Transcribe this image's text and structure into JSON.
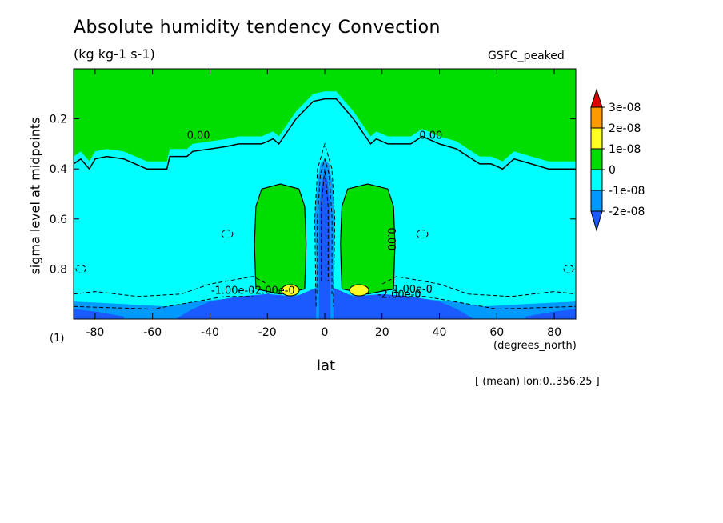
{
  "chart_data": {
    "type": "heatmap",
    "title": "Absolute humidity tendency Convection",
    "units": "(kg kg-1 s-1)",
    "source": "GSFC_peaked",
    "xlabel": "lat",
    "x_units": "(degrees_north)",
    "ylabel": "sigma level at midpoints",
    "y_units": "(1)",
    "note": "[ (mean) lon:0..356.25 ]",
    "xlim": [
      -87.5,
      87.5
    ],
    "ylim": [
      1.0,
      0.0
    ],
    "x_ticks": [
      "-80",
      "-60",
      "-40",
      "-20",
      "0",
      "20",
      "40",
      "60",
      "80"
    ],
    "y_ticks": [
      "0.2",
      "0.4",
      "0.6",
      "0.8"
    ],
    "x_tick_values": [
      -80,
      -60,
      -40,
      -20,
      0,
      20,
      40,
      60,
      80
    ],
    "y_tick_values": [
      0.2,
      0.4,
      0.6,
      0.8
    ],
    "colorbar": {
      "levels": [
        "3e-08",
        "2e-08",
        "1e-08",
        "0",
        "-1e-08",
        "-2e-08"
      ],
      "colors": [
        "#e00000",
        "#ff9900",
        "#ffff22",
        "#00dd00",
        "#00ffff",
        "#0099ff",
        "#1a5aff"
      ]
    },
    "contour_labels": [
      "0.00",
      "0.00",
      "0.00",
      "-1.00e-0",
      "-2.00e-0",
      "-2.00e-0",
      "-1.00e-0"
    ],
    "zero_line_north": [
      [
        -87.5,
        0.38
      ],
      [
        -85,
        0.36
      ],
      [
        -82,
        0.4
      ],
      [
        -80,
        0.36
      ],
      [
        -76,
        0.35
      ],
      [
        -70,
        0.36
      ],
      [
        -62,
        0.4
      ],
      [
        -55,
        0.4
      ],
      [
        -54,
        0.35
      ],
      [
        -48,
        0.35
      ],
      [
        -46,
        0.33
      ],
      [
        -40,
        0.32
      ],
      [
        -34,
        0.31
      ],
      [
        -30,
        0.3
      ],
      [
        -22,
        0.3
      ],
      [
        -18,
        0.28
      ],
      [
        -16,
        0.3
      ],
      [
        -10,
        0.2
      ],
      [
        -4,
        0.13
      ],
      [
        0,
        0.12
      ],
      [
        4,
        0.12
      ],
      [
        10,
        0.2
      ],
      [
        16,
        0.3
      ],
      [
        18,
        0.28
      ],
      [
        22,
        0.3
      ],
      [
        30,
        0.3
      ],
      [
        34,
        0.27
      ],
      [
        40,
        0.3
      ],
      [
        46,
        0.32
      ],
      [
        50,
        0.35
      ],
      [
        54,
        0.38
      ],
      [
        58,
        0.38
      ],
      [
        62,
        0.4
      ],
      [
        66,
        0.36
      ],
      [
        72,
        0.38
      ],
      [
        78,
        0.4
      ],
      [
        82,
        0.4
      ],
      [
        87.5,
        0.4
      ]
    ],
    "positive_cells": [
      {
        "label": "southern",
        "lat_range": [
          -25,
          -7
        ],
        "sigma_range": [
          0.47,
          0.9
        ],
        "peak_sigma": 0.89,
        "peak_lat": -12
      },
      {
        "label": "northern",
        "lat_range": [
          6,
          25
        ],
        "sigma_range": [
          0.47,
          0.9
        ],
        "peak_sigma": 0.89,
        "peak_lat": 12
      }
    ],
    "negative_core": {
      "lat_range": [
        -3,
        3
      ],
      "sigma_range": [
        0.35,
        1.0
      ]
    },
    "grid": false
  }
}
